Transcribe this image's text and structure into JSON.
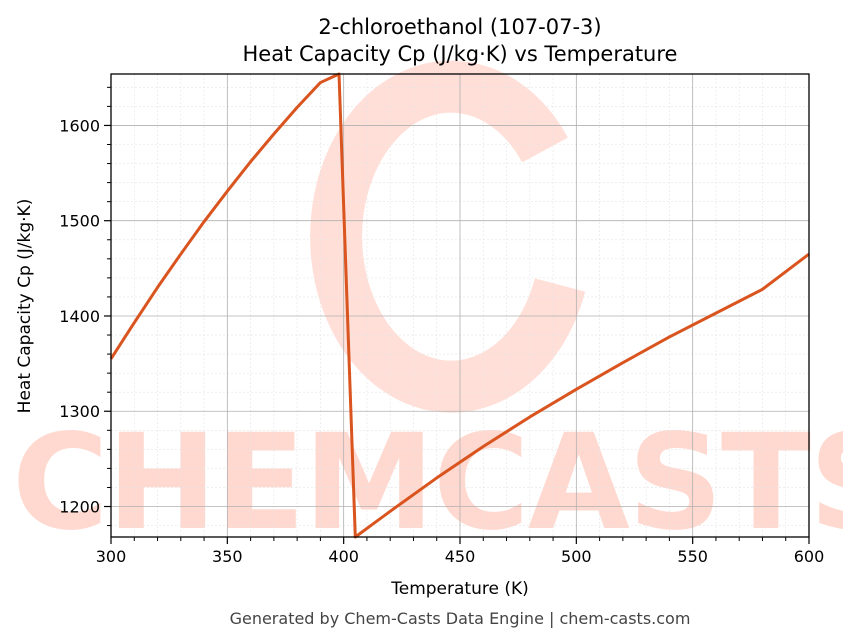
{
  "chart_data": {
    "type": "line",
    "title": "2-chloroethanol (107-07-3)",
    "subtitle": "Heat Capacity Cp (J/kg·K) vs Temperature",
    "xlabel": "Temperature (K)",
    "ylabel": "Heat Capacity Cp (J/kg·K)",
    "xlim": [
      300,
      600
    ],
    "ylim": [
      1168,
      1654
    ],
    "x_ticks": [
      300,
      350,
      400,
      450,
      500,
      550,
      600
    ],
    "y_ticks": [
      1200,
      1300,
      1400,
      1500,
      1600
    ],
    "grid": true,
    "line_color": "#d9541e",
    "series": [
      {
        "x": [
          300,
          310,
          320,
          330,
          340,
          350,
          360,
          370,
          380,
          390,
          398,
          405,
          420,
          440,
          460,
          480,
          500,
          520,
          540,
          560,
          580,
          600
        ],
        "y": [
          1355,
          1393,
          1430,
          1465,
          1499,
          1531,
          1562,
          1591,
          1619,
          1645,
          1654,
          1168,
          1195,
          1230,
          1263,
          1294,
          1323,
          1351,
          1378,
          1403,
          1428,
          1465
        ]
      }
    ]
  },
  "watermark": "CHEMCASTS",
  "footer": "Generated by Chem-Casts Data Engine | chem-casts.com"
}
